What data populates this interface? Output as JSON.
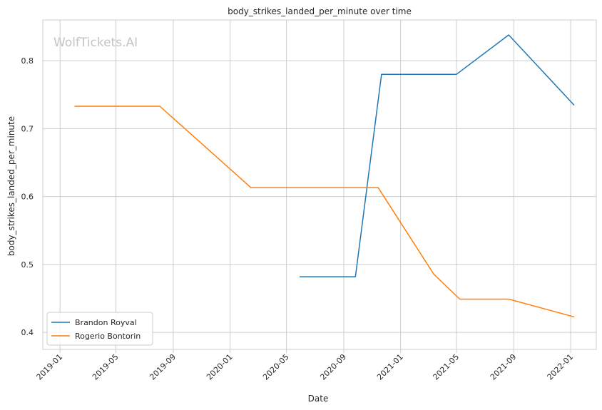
{
  "watermark": "WolfTickets.AI",
  "chart_data": {
    "type": "line",
    "title": "body_strikes_landed_per_minute over time",
    "xlabel": "Date",
    "ylabel": "body_strikes_landed_per_minute",
    "x_ticks": [
      "2019-01",
      "2019-05",
      "2019-09",
      "2020-01",
      "2020-05",
      "2020-09",
      "2021-01",
      "2021-05",
      "2021-09",
      "2022-01"
    ],
    "y_ticks": [
      "0.4",
      "0.5",
      "0.6",
      "0.7",
      "0.8"
    ],
    "xlim": [
      "2018-11-25",
      "2022-02-25"
    ],
    "ylim": [
      0.375,
      0.86
    ],
    "grid": true,
    "legend_position": "lower-left",
    "series": [
      {
        "name": "Brandon Royval",
        "color": "#1f77b4",
        "points": [
          {
            "x": "2020-05-30",
            "y": 0.482
          },
          {
            "x": "2020-09-26",
            "y": 0.482
          },
          {
            "x": "2020-11-21",
            "y": 0.78
          },
          {
            "x": "2021-05-01",
            "y": 0.78
          },
          {
            "x": "2021-08-21",
            "y": 0.838
          },
          {
            "x": "2022-01-08",
            "y": 0.735
          }
        ]
      },
      {
        "name": "Rogerio Bontorin",
        "color": "#ff7f0e",
        "points": [
          {
            "x": "2019-02-02",
            "y": 0.733
          },
          {
            "x": "2019-08-03",
            "y": 0.733
          },
          {
            "x": "2020-02-15",
            "y": 0.613
          },
          {
            "x": "2020-11-14",
            "y": 0.613
          },
          {
            "x": "2021-03-13",
            "y": 0.486
          },
          {
            "x": "2021-05-08",
            "y": 0.449
          },
          {
            "x": "2021-08-21",
            "y": 0.449
          },
          {
            "x": "2022-01-08",
            "y": 0.423
          }
        ]
      }
    ]
  }
}
